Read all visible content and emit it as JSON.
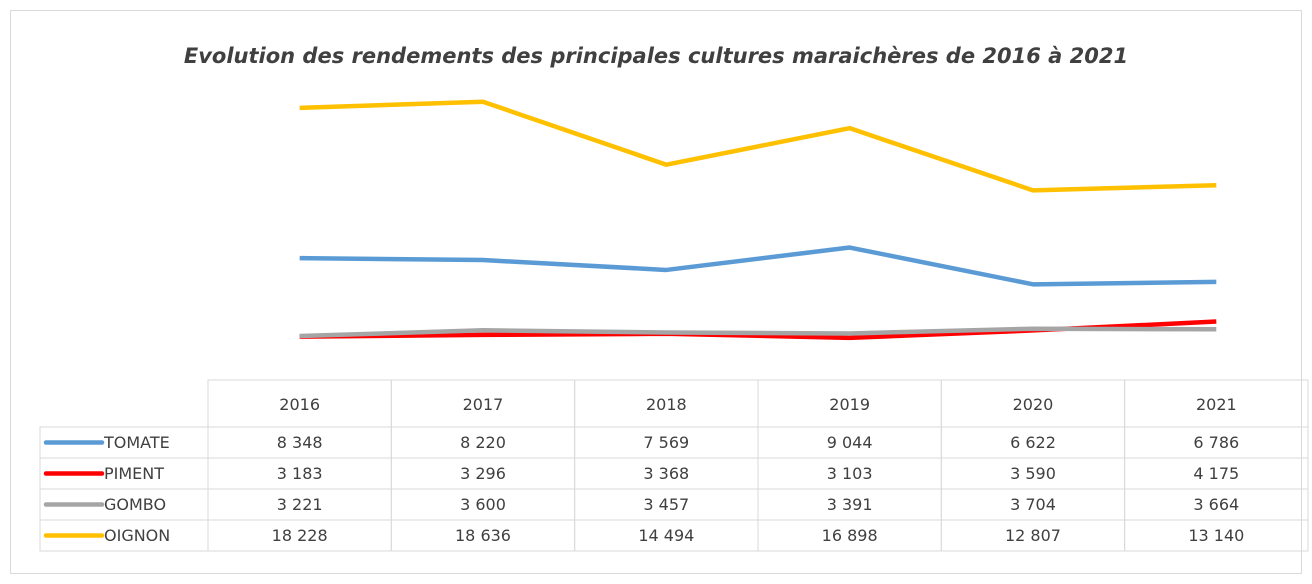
{
  "chart_data": {
    "type": "line",
    "title": "Evolution des rendements des principales cultures maraichères de 2016 à 2021",
    "categories": [
      "2016",
      "2017",
      "2018",
      "2019",
      "2020",
      "2021"
    ],
    "ylim": [
      0,
      20000
    ],
    "series": [
      {
        "name": "TOMATE",
        "color": "#5b9bd5",
        "values": [
          8348,
          8220,
          7569,
          9044,
          6622,
          6786
        ],
        "value_labels": [
          "8 348",
          "8 220",
          "7 569",
          "9 044",
          "6 622",
          "6 786"
        ]
      },
      {
        "name": "PIMENT",
        "color": "#ff0000",
        "values": [
          3183,
          3296,
          3368,
          3103,
          3590,
          4175
        ],
        "value_labels": [
          "3 183",
          "3 296",
          "3 368",
          "3 103",
          "3 590",
          "4 175"
        ]
      },
      {
        "name": "GOMBO",
        "color": "#a5a5a5",
        "values": [
          3221,
          3600,
          3457,
          3391,
          3704,
          3664
        ],
        "value_labels": [
          "3 221",
          "3 600",
          "3 457",
          "3 391",
          "3 704",
          "3 664"
        ]
      },
      {
        "name": "OIGNON",
        "color": "#ffc000",
        "values": [
          18228,
          18636,
          14494,
          16898,
          12807,
          13140
        ],
        "value_labels": [
          "18 228",
          "18 636",
          "14 494",
          "16 898",
          "12 807",
          "13 140"
        ]
      }
    ]
  }
}
